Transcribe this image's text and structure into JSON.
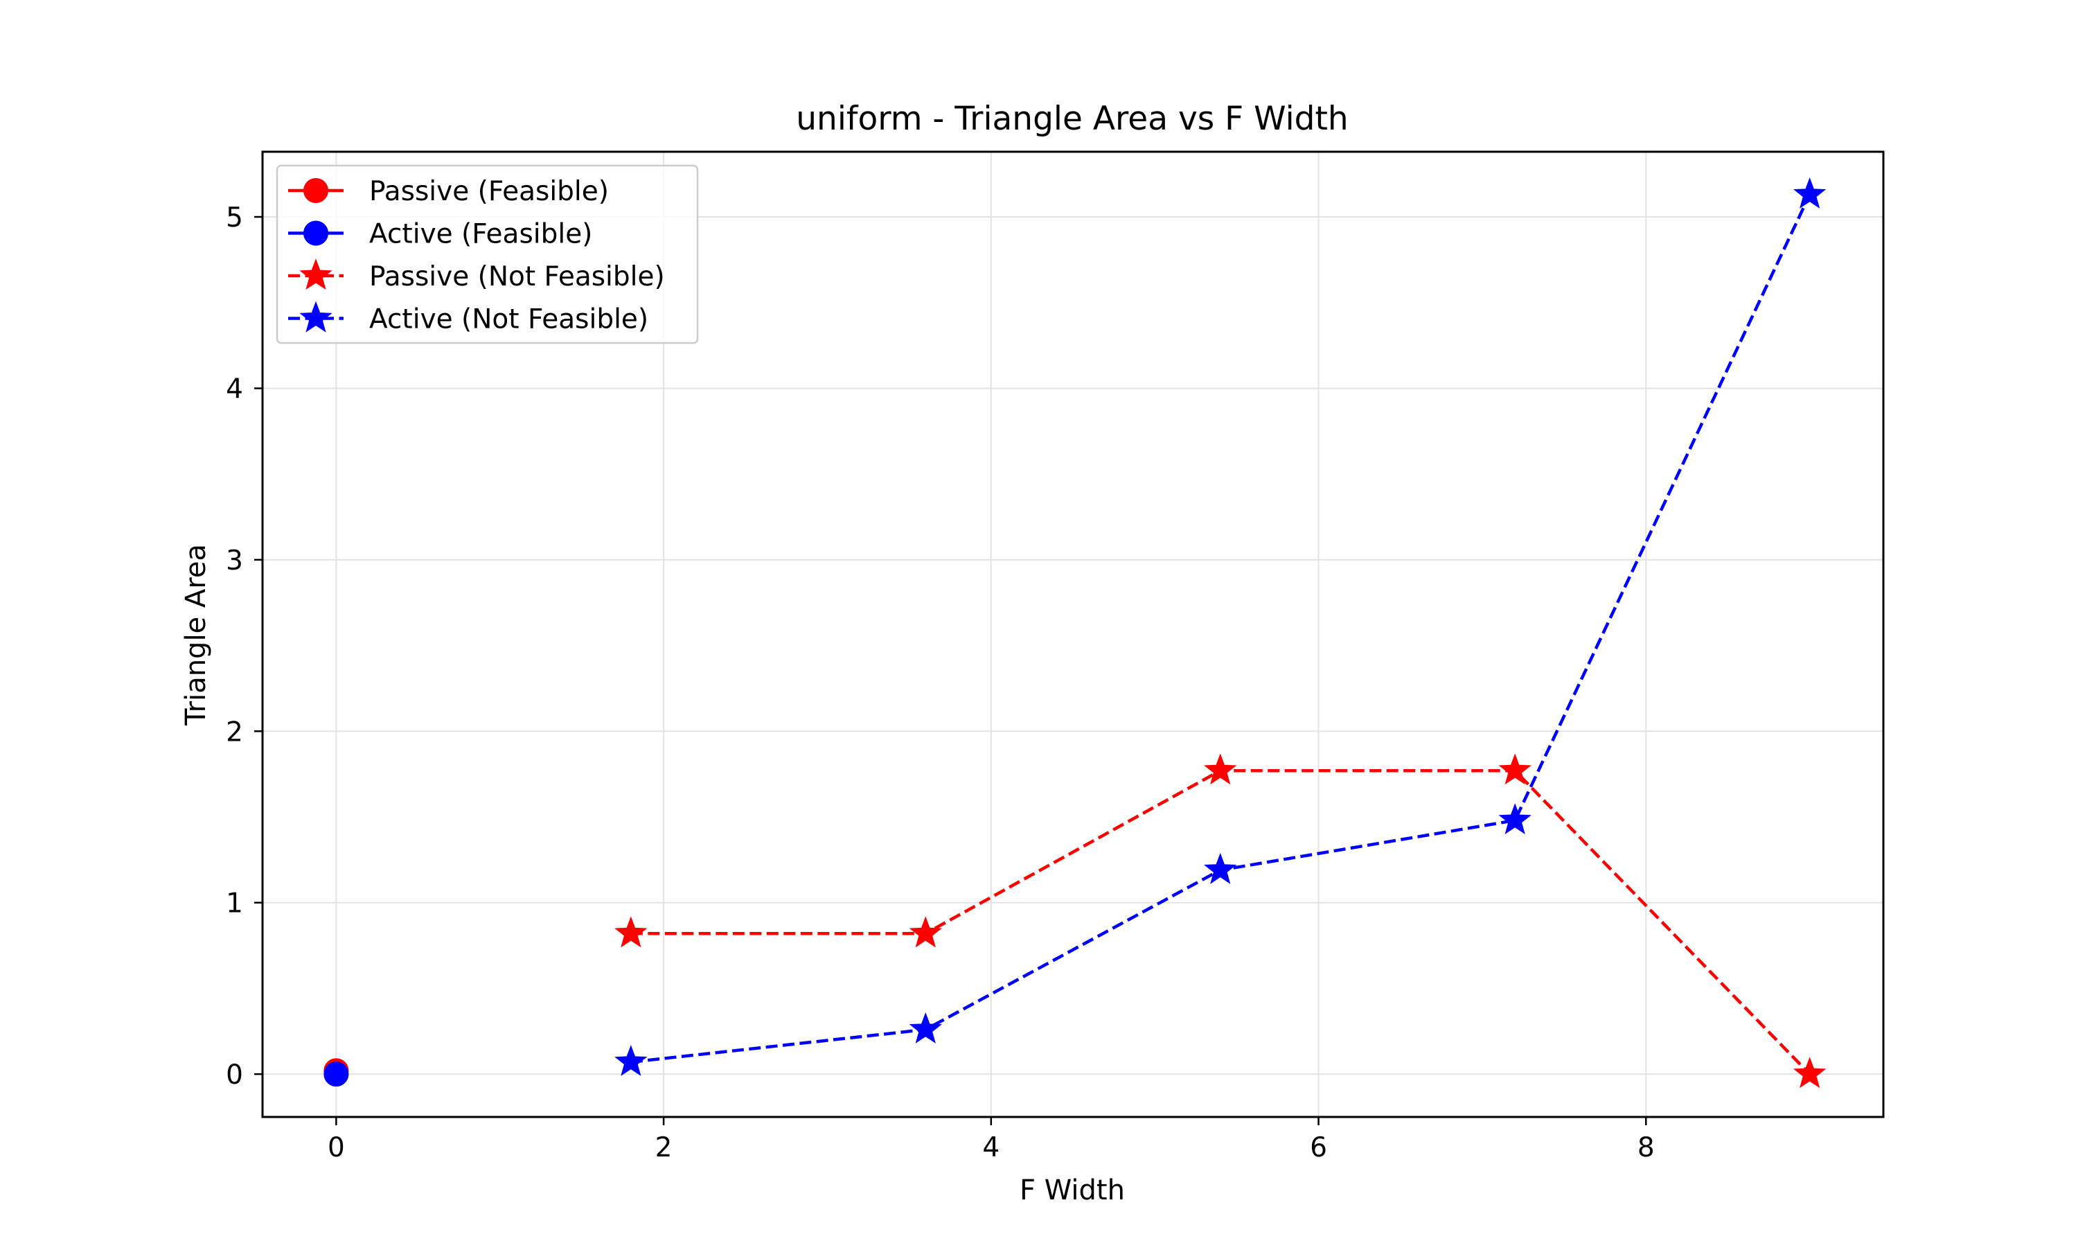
{
  "chart_data": {
    "type": "line",
    "title": "uniform - Triangle Area vs F Width",
    "xlabel": "F Width",
    "ylabel": "Triangle Area",
    "xlim": [
      -0.45,
      9.45
    ],
    "ylim": [
      -0.25,
      5.38
    ],
    "x_ticks": [
      0,
      2,
      4,
      6,
      8
    ],
    "y_ticks": [
      0,
      1,
      2,
      3,
      4,
      5
    ],
    "grid": true,
    "legend_position": "top-left",
    "series": [
      {
        "name": "Passive (Feasible)",
        "color": "#ff0000",
        "marker": "circle",
        "linestyle": "solid",
        "points": [
          [
            0,
            0.02
          ]
        ]
      },
      {
        "name": "Active (Feasible)",
        "color": "#0000ff",
        "marker": "circle",
        "linestyle": "solid",
        "points": [
          [
            0,
            0.0
          ]
        ]
      },
      {
        "name": "Passive (Not Feasible)",
        "color": "#ff0000",
        "marker": "star",
        "linestyle": "dashed",
        "points": [
          [
            1.8,
            0.82
          ],
          [
            3.6,
            0.82
          ],
          [
            5.4,
            1.77
          ],
          [
            7.2,
            1.77
          ],
          [
            9.0,
            0.0
          ]
        ]
      },
      {
        "name": "Active (Not Feasible)",
        "color": "#0000ff",
        "marker": "star",
        "linestyle": "dashed",
        "points": [
          [
            1.8,
            0.07
          ],
          [
            3.6,
            0.26
          ],
          [
            5.4,
            1.19
          ],
          [
            7.2,
            1.48
          ],
          [
            9.0,
            5.13
          ]
        ]
      }
    ]
  }
}
